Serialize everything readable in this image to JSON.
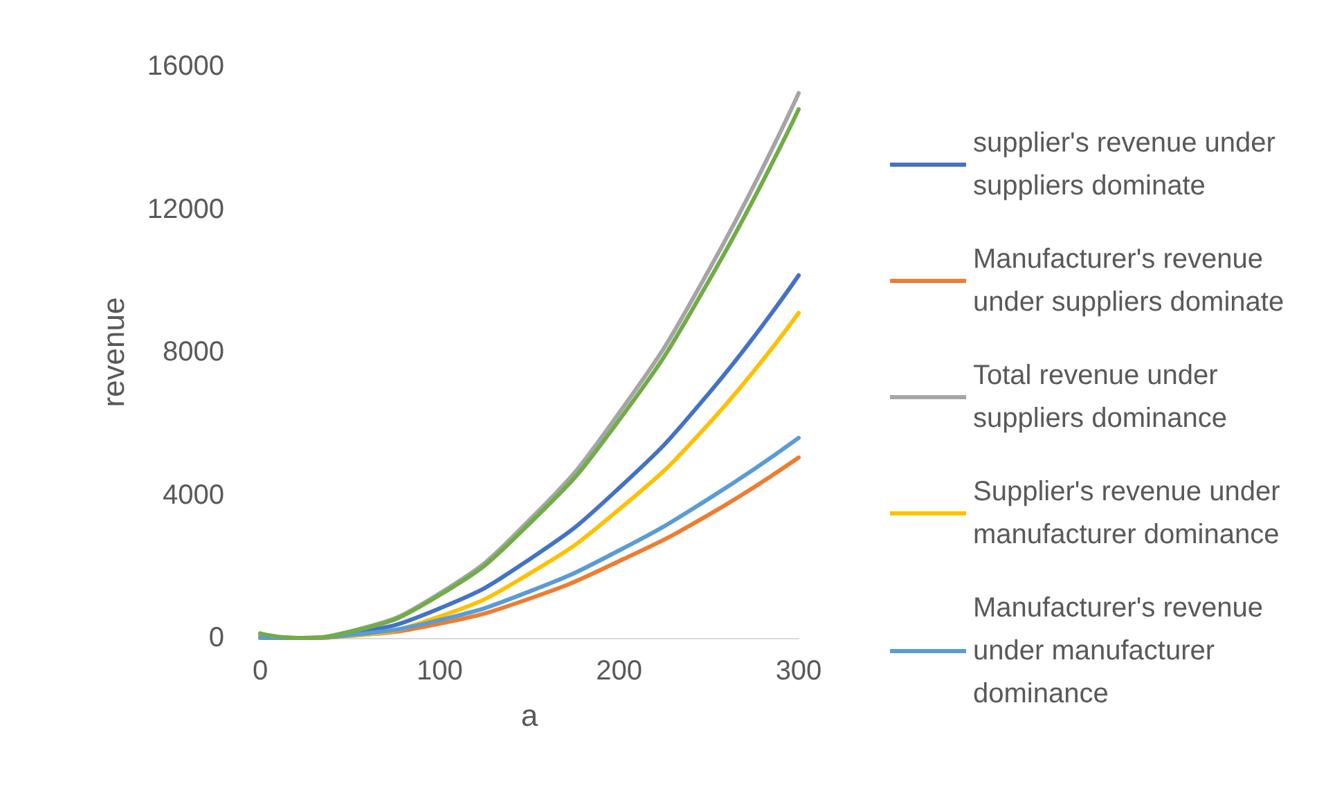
{
  "chart_data": {
    "type": "line",
    "xlabel": "a",
    "ylabel": "revenue",
    "x": [
      0,
      20,
      50,
      100,
      150,
      200,
      250,
      300
    ],
    "xlim": [
      0,
      300
    ],
    "xticks": [
      0,
      100,
      200,
      300
    ],
    "ylim": [
      0,
      16000
    ],
    "yticks": [
      0,
      4000,
      8000,
      12000,
      16000
    ],
    "grid": false,
    "legend": "right",
    "marker": "none",
    "line_style": "solid",
    "series": [
      {
        "name": "supplier's revenue under suppliers dominate",
        "color": "#4472c4",
        "values": [
          50,
          0,
          120,
          830,
          2200,
          4200,
          6850,
          10150
        ]
      },
      {
        "name": "Manufacturer's revenue under suppliers dominate",
        "color": "#ed7d31",
        "values": [
          20,
          0,
          60,
          400,
          1100,
          2150,
          3450,
          5050
        ]
      },
      {
        "name": "Total revenue under suppliers dominance",
        "color": "#a5a5a5",
        "values": [
          100,
          0,
          180,
          1250,
          3300,
          6300,
          10300,
          15250
        ]
      },
      {
        "name": "Supplier's revenue under manufacturer dominance",
        "color": "#ffc000",
        "values": [
          0,
          0,
          60,
          600,
          1800,
          3600,
          6000,
          9100
        ]
      },
      {
        "name": "Manufacturer's revenue under manufacturer dominance",
        "color": "#5b9bd5",
        "values": [
          0,
          0,
          80,
          500,
          1300,
          2450,
          3900,
          5600
        ]
      },
      {
        "color": "#70ad47",
        "values": [
          130,
          0,
          170,
          1200,
          3200,
          6100,
          10000,
          14800
        ]
      }
    ]
  }
}
